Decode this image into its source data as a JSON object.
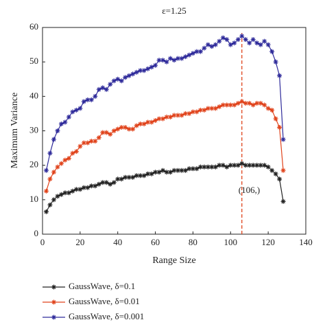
{
  "chart_data": {
    "type": "line",
    "title": "ε=1.25",
    "x_label": "Range Size",
    "y_label": "Maximum Variance",
    "x": [
      2,
      4,
      6,
      8,
      10,
      12,
      14,
      16,
      18,
      20,
      22,
      24,
      26,
      28,
      30,
      32,
      34,
      36,
      38,
      40,
      42,
      44,
      46,
      48,
      50,
      52,
      54,
      56,
      58,
      60,
      62,
      64,
      66,
      68,
      70,
      72,
      74,
      76,
      78,
      80,
      82,
      84,
      86,
      88,
      90,
      92,
      94,
      96,
      98,
      100,
      102,
      104,
      106,
      108,
      110,
      112,
      114,
      116,
      118,
      120,
      122,
      124,
      126,
      128
    ],
    "series": [
      {
        "name": "GaussWave, δ=0.1",
        "color": "#222222",
        "values": [
          6.5,
          8.5,
          10,
          11,
          11.5,
          12,
          12,
          12.5,
          13,
          13,
          13.5,
          13.5,
          14,
          14,
          14.5,
          15,
          15,
          14.5,
          15,
          16,
          16,
          16.5,
          16.5,
          16.5,
          17,
          17,
          17,
          17.5,
          17.5,
          18,
          18,
          18.5,
          18,
          18,
          18.5,
          18.5,
          18.5,
          18.5,
          19,
          19,
          19,
          19.5,
          19.5,
          19.5,
          19.5,
          19.5,
          20,
          20,
          19.5,
          20,
          20,
          20,
          20.5,
          20,
          20,
          20,
          20,
          20,
          20,
          19.5,
          18.5,
          17.5,
          16,
          9.5
        ]
      },
      {
        "name": "GaussWave, δ=0.01",
        "color": "#e0421a",
        "values": [
          12.5,
          16,
          18,
          19.5,
          20.5,
          21.5,
          22,
          23.5,
          24,
          25.5,
          26.5,
          26.5,
          27,
          27,
          28,
          29.5,
          29.5,
          29,
          30,
          30.5,
          31,
          31,
          30.5,
          30.5,
          31.5,
          32,
          32,
          32.5,
          32.5,
          33,
          33.5,
          33.5,
          34,
          34,
          34.5,
          34.5,
          34.5,
          35,
          35,
          35.5,
          35.5,
          36,
          36,
          36.5,
          36.5,
          36.5,
          37,
          37.5,
          37.5,
          37.5,
          37.5,
          38,
          38.5,
          38,
          38,
          37.5,
          38,
          38,
          37.5,
          36.5,
          36,
          33.5,
          31,
          18.5
        ]
      },
      {
        "name": "GaussWave, δ=0.001",
        "color": "#2e2a9a",
        "values": [
          18.5,
          23.5,
          27.5,
          30,
          32,
          32.5,
          34,
          35.5,
          36,
          36.5,
          38.5,
          39,
          39,
          40,
          42,
          42.5,
          42,
          43.5,
          44.5,
          45,
          44.5,
          45.5,
          46,
          46.5,
          47,
          47.5,
          47.5,
          48,
          48.5,
          49,
          50.5,
          50.5,
          50,
          51,
          50.5,
          51,
          51,
          51.5,
          52,
          52.5,
          53,
          53,
          54,
          55,
          54.5,
          55,
          56,
          57,
          56.5,
          55,
          55.5,
          56.5,
          57.5,
          56.5,
          55.5,
          56.5,
          55.5,
          55,
          56,
          55,
          53,
          50,
          46,
          27.5
        ]
      }
    ],
    "xlim": [
      0,
      140
    ],
    "xticks": [
      0,
      20,
      40,
      60,
      80,
      100,
      120,
      140
    ],
    "ylim": [
      0,
      60
    ],
    "yticks": [
      0,
      10,
      20,
      30,
      40,
      50,
      60
    ],
    "vline": {
      "x": 106,
      "color": "#e0421a"
    },
    "annotation": {
      "text": "(106,)",
      "x": 106,
      "y": 11
    },
    "legend": "bottom"
  }
}
